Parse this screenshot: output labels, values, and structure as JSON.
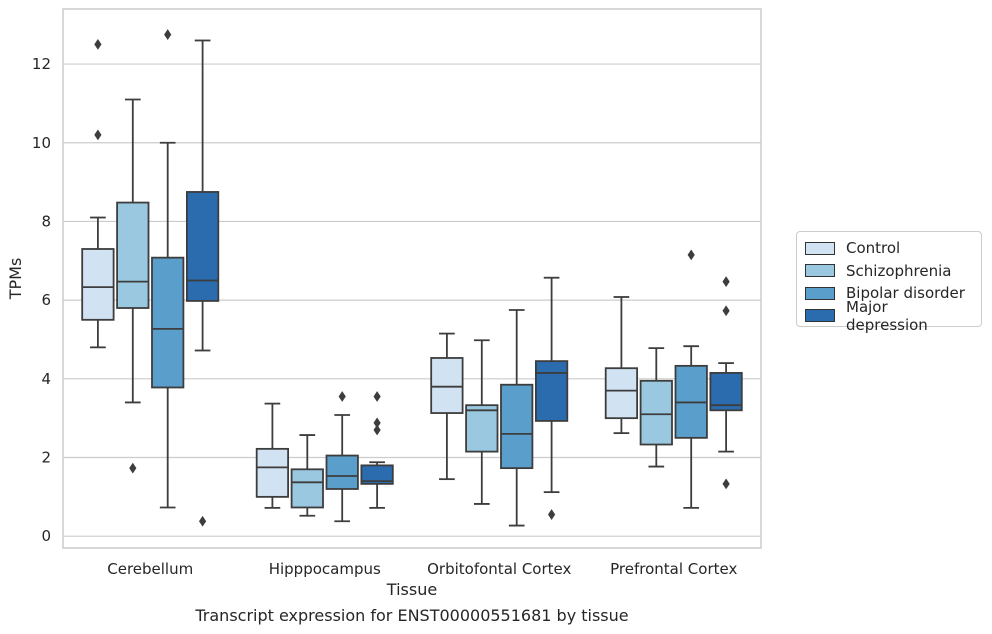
{
  "chart_data": {
    "type": "box",
    "title": "Transcript expression for ENST00000551681 by tissue",
    "xlabel": "Tissue",
    "ylabel": "TPMs",
    "ylim": [
      -0.3,
      13.4
    ],
    "yticks": [
      "0",
      "2",
      "4",
      "6",
      "8",
      "10",
      "12"
    ],
    "grid": "horizontal",
    "legend_position": "right",
    "categories": [
      "Cerebellum",
      "Hipppocampus",
      "Orbitofontal Cortex",
      "Prefrontal Cortex"
    ],
    "series": [
      {
        "name": "Control",
        "color": "#d1e2f2",
        "boxes": [
          {
            "whisker_low": 4.8,
            "q1": 5.5,
            "median": 6.33,
            "q3": 7.3,
            "whisker_high": 8.1,
            "outliers": [
              10.2,
              12.5
            ]
          },
          {
            "whisker_low": 0.72,
            "q1": 1.0,
            "median": 1.75,
            "q3": 2.22,
            "whisker_high": 3.37,
            "outliers": []
          },
          {
            "whisker_low": 1.45,
            "q1": 3.13,
            "median": 3.8,
            "q3": 4.53,
            "whisker_high": 5.15,
            "outliers": []
          },
          {
            "whisker_low": 2.62,
            "q1": 3.0,
            "median": 3.7,
            "q3": 4.27,
            "whisker_high": 6.08,
            "outliers": []
          }
        ]
      },
      {
        "name": "Schizophrenia",
        "color": "#9ac8e0",
        "boxes": [
          {
            "whisker_low": 3.4,
            "q1": 5.8,
            "median": 6.47,
            "q3": 8.48,
            "whisker_high": 11.1,
            "outliers": [
              1.73
            ]
          },
          {
            "whisker_low": 0.52,
            "q1": 0.73,
            "median": 1.37,
            "q3": 1.7,
            "whisker_high": 2.57,
            "outliers": []
          },
          {
            "whisker_low": 0.82,
            "q1": 2.15,
            "median": 3.2,
            "q3": 3.33,
            "whisker_high": 4.98,
            "outliers": []
          },
          {
            "whisker_low": 1.77,
            "q1": 2.33,
            "median": 3.1,
            "q3": 3.95,
            "whisker_high": 4.78,
            "outliers": []
          }
        ]
      },
      {
        "name": "Bipolar disorder",
        "color": "#5a9ecc",
        "boxes": [
          {
            "whisker_low": 0.73,
            "q1": 3.78,
            "median": 5.27,
            "q3": 7.08,
            "whisker_high": 10.0,
            "outliers": [
              12.75
            ]
          },
          {
            "whisker_low": 0.38,
            "q1": 1.2,
            "median": 1.53,
            "q3": 2.05,
            "whisker_high": 3.08,
            "outliers": [
              3.55
            ]
          },
          {
            "whisker_low": 0.27,
            "q1": 1.73,
            "median": 2.6,
            "q3": 3.85,
            "whisker_high": 5.75,
            "outliers": []
          },
          {
            "whisker_low": 0.72,
            "q1": 2.5,
            "median": 3.4,
            "q3": 4.33,
            "whisker_high": 4.83,
            "outliers": [
              7.15
            ]
          }
        ]
      },
      {
        "name": "Major depression",
        "color": "#2a6cae",
        "boxes": [
          {
            "whisker_low": 4.72,
            "q1": 5.98,
            "median": 6.5,
            "q3": 8.75,
            "whisker_high": 12.6,
            "outliers": [
              0.38
            ]
          },
          {
            "whisker_low": 0.72,
            "q1": 1.33,
            "median": 1.4,
            "q3": 1.8,
            "whisker_high": 1.88,
            "outliers": [
              2.88,
              2.7,
              3.55
            ]
          },
          {
            "whisker_low": 1.12,
            "q1": 2.93,
            "median": 4.15,
            "q3": 4.45,
            "whisker_high": 6.57,
            "outliers": [
              0.55
            ]
          },
          {
            "whisker_low": 2.15,
            "q1": 3.2,
            "median": 3.33,
            "q3": 4.15,
            "whisker_high": 4.4,
            "outliers": [
              6.47,
              5.73,
              1.33
            ]
          }
        ]
      }
    ]
  }
}
